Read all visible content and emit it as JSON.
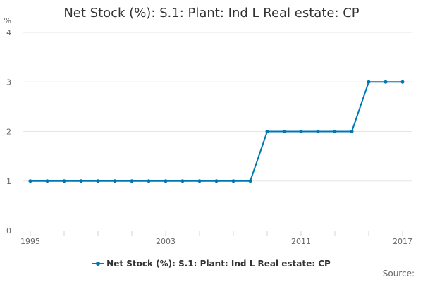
{
  "chart_data": {
    "type": "line",
    "title": "Net Stock (%): S.1: Plant: Ind L Real estate: CP",
    "ylabel": "%",
    "xlabel": "",
    "x": [
      1995,
      1996,
      1997,
      1998,
      1999,
      2000,
      2001,
      2002,
      2003,
      2004,
      2005,
      2006,
      2007,
      2008,
      2009,
      2010,
      2011,
      2012,
      2013,
      2014,
      2015,
      2016,
      2017
    ],
    "x_tick_labels": [
      "1995",
      "2003",
      "2011",
      "2017"
    ],
    "y_ticks": [
      0,
      1,
      2,
      3,
      4
    ],
    "xlim": [
      1995,
      2017
    ],
    "ylim": [
      0,
      4
    ],
    "grid": "horizontal",
    "legend_position": "bottom",
    "series": [
      {
        "name": "Net Stock (%): S.1: Plant: Ind L Real estate: CP",
        "color": "#0077b3",
        "values": [
          1,
          1,
          1,
          1,
          1,
          1,
          1,
          1,
          1,
          1,
          1,
          1,
          1,
          1,
          2,
          2,
          2,
          2,
          2,
          2,
          3,
          3,
          3
        ]
      }
    ]
  },
  "footer": {
    "source_label": "Source:"
  }
}
